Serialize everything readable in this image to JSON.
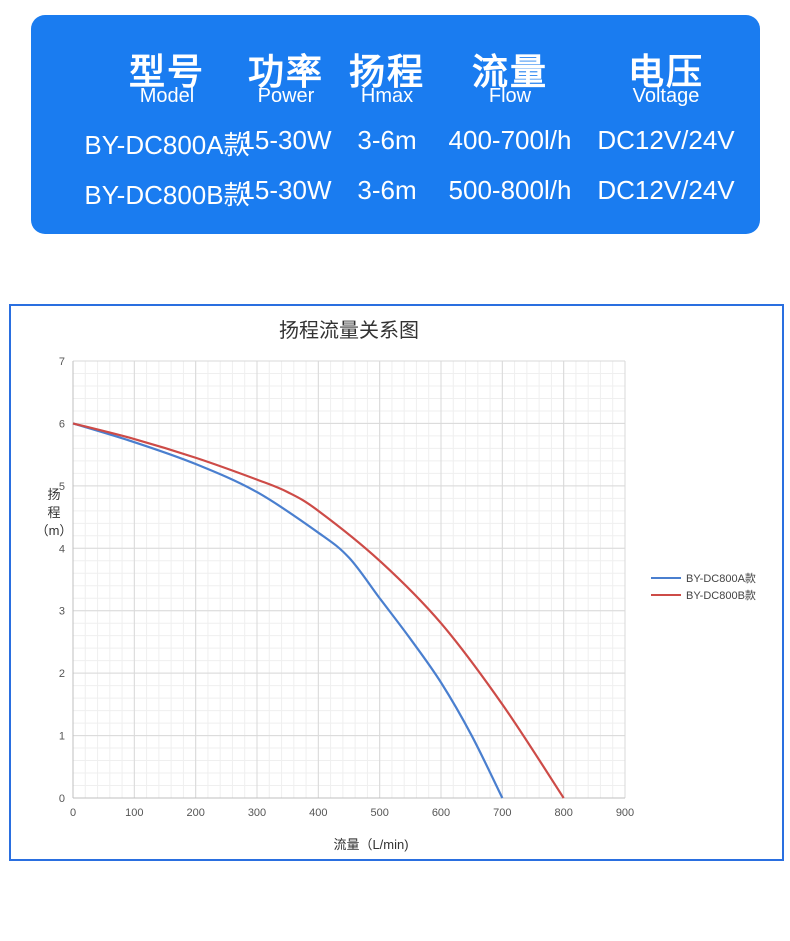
{
  "colors": {
    "card_bg": "#1a7cf0",
    "series_a": "#4a7fcf",
    "series_b": "#cd4b47",
    "frame": "#2a6fe0"
  },
  "specs": {
    "columns": [
      {
        "zh": "型号",
        "en": "Model"
      },
      {
        "zh": "功率",
        "en": "Power"
      },
      {
        "zh": "扬程",
        "en": "Hmax"
      },
      {
        "zh": "流量",
        "en": "Flow"
      },
      {
        "zh": "电压",
        "en": "Voltage"
      }
    ],
    "rows": [
      [
        "BY-DC800A款",
        "15-30W",
        "3-6m",
        "400-700l/h",
        "DC12V/24V"
      ],
      [
        "BY-DC800B款",
        "15-30W",
        "3-6m",
        "500-800l/h",
        "DC12V/24V"
      ]
    ]
  },
  "chart_data": {
    "type": "line",
    "title": "扬程流量关系图",
    "xlabel": "流量（L/min)",
    "ylabel": [
      "扬",
      "程",
      "（m）"
    ],
    "xlim": [
      0,
      900
    ],
    "ylim": [
      0,
      7
    ],
    "x_ticks": [
      "0",
      "100",
      "200",
      "300",
      "400",
      "500",
      "600",
      "700",
      "800",
      "900"
    ],
    "y_ticks": [
      "0",
      "1",
      "2",
      "3",
      "4",
      "5",
      "6",
      "7"
    ],
    "grid": true,
    "legend": "right",
    "series": [
      {
        "name": "BY-DC800A款",
        "x": [
          0,
          100,
          200,
          300,
          400,
          450,
          500,
          550,
          600,
          650,
          700
        ],
        "y": [
          6.0,
          5.7,
          5.35,
          4.9,
          4.25,
          3.85,
          3.2,
          2.55,
          1.85,
          1.0,
          0.0
        ]
      },
      {
        "name": "BY-DC800B款",
        "x": [
          0,
          100,
          200,
          300,
          350,
          400,
          500,
          600,
          700,
          800
        ],
        "y": [
          6.0,
          5.75,
          5.45,
          5.1,
          4.9,
          4.6,
          3.8,
          2.8,
          1.5,
          0.0
        ]
      }
    ]
  }
}
